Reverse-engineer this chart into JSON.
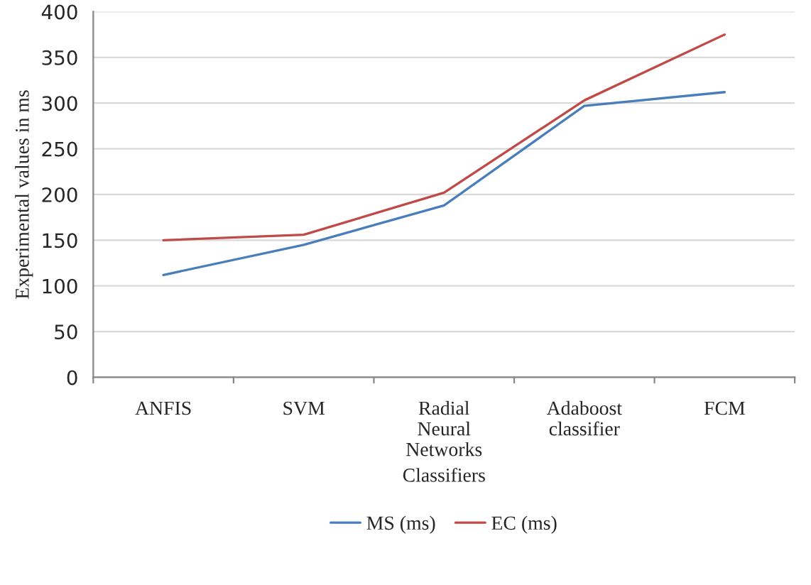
{
  "chart_data": {
    "type": "line",
    "xlabel": "Classifiers",
    "ylabel": "Experimental values in ms",
    "categories": [
      "ANFIS",
      "SVM",
      "Radial\nNeural\nNetworks",
      "Adaboost\nclassifier",
      "FCM"
    ],
    "series": [
      {
        "name": "MS (ms)",
        "color": "#4a7ebb",
        "values": [
          112,
          145,
          188,
          297,
          312
        ]
      },
      {
        "name": "EC (ms)",
        "color": "#be4b48",
        "values": [
          150,
          156,
          202,
          303,
          375
        ]
      }
    ],
    "ylim": [
      0,
      400
    ],
    "yticks": [
      0,
      50,
      100,
      150,
      200,
      250,
      300,
      350,
      400
    ],
    "grid": "y",
    "legend": "bottom",
    "marker": "none",
    "line_style": "solid"
  }
}
